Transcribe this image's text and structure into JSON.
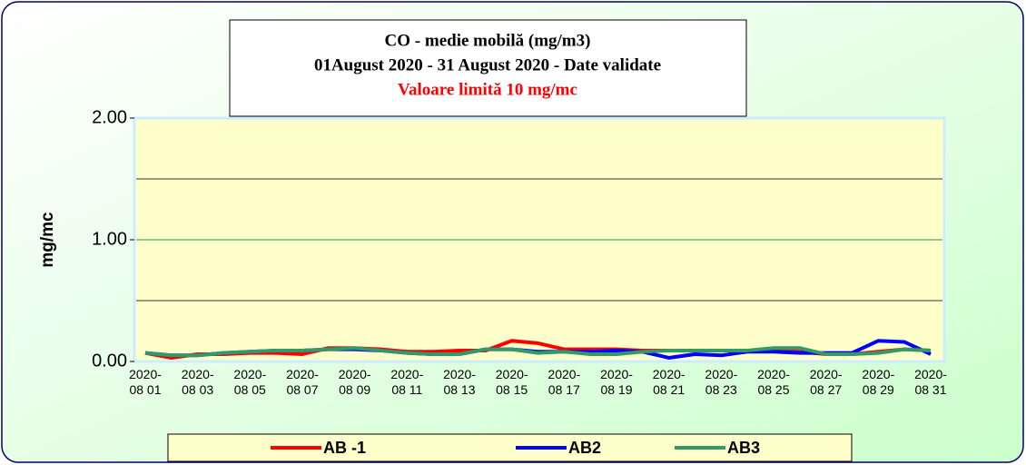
{
  "chart_data": {
    "type": "line",
    "title": [
      "CO - medie mobilă (mg/m3)",
      "01August 2020 -  31 August 2020 - Date validate",
      "Valoare limită 10 mg/mc"
    ],
    "title_colors": [
      "#000000",
      "#000000",
      "#ff0000"
    ],
    "ylabel": "mg/mc",
    "categories": [
      "2020-08 01",
      null,
      "2020-08 03",
      null,
      "2020-08 05",
      null,
      "2020-08 07",
      null,
      "2020-08 09",
      null,
      "2020-08 11",
      null,
      "2020-08 13",
      null,
      "2020-08 15",
      null,
      "2020-08 17",
      null,
      "2020-08 19",
      null,
      "2020-08 21",
      null,
      "2020-08 23",
      null,
      "2020-08 25",
      null,
      "2020-08 27",
      null,
      "2020-08 29",
      null,
      "2020-08 31"
    ],
    "series": [
      {
        "name": "AB -1",
        "color": "#ff0000",
        "values": [
          0.07,
          0.03,
          0.06,
          0.06,
          0.07,
          0.07,
          0.06,
          0.11,
          0.11,
          0.1,
          0.08,
          0.08,
          0.09,
          0.09,
          0.17,
          0.15,
          0.1,
          0.1,
          0.1,
          0.09,
          0.09,
          0.09,
          0.09,
          0.09,
          0.09,
          0.08,
          0.06,
          0.06,
          0.08,
          0.1,
          0.09
        ]
      },
      {
        "name": "AB2",
        "color": "#0000ff",
        "values": [
          0.07,
          0.05,
          0.05,
          0.07,
          0.08,
          0.09,
          0.09,
          0.1,
          0.1,
          0.09,
          0.07,
          0.06,
          0.06,
          0.1,
          0.1,
          0.08,
          0.08,
          0.08,
          0.09,
          0.08,
          0.03,
          0.06,
          0.05,
          0.08,
          0.08,
          0.07,
          0.07,
          0.07,
          0.17,
          0.16,
          0.06
        ]
      },
      {
        "name": "AB3",
        "color": "#339966",
        "values": [
          0.07,
          0.05,
          0.05,
          0.07,
          0.08,
          0.09,
          0.09,
          0.1,
          0.11,
          0.09,
          0.07,
          0.06,
          0.06,
          0.1,
          0.1,
          0.07,
          0.08,
          0.06,
          0.06,
          0.08,
          0.09,
          0.09,
          0.09,
          0.09,
          0.11,
          0.11,
          0.06,
          0.06,
          0.07,
          0.1,
          0.09
        ]
      }
    ],
    "ylim": [
      0,
      2
    ],
    "yticks": [
      {
        "value": 0,
        "label": "0.00"
      },
      {
        "value": 1,
        "label": "1.00"
      },
      {
        "value": 2,
        "label": "2.00"
      }
    ],
    "grid_lines": [
      0.5,
      1,
      1.5
    ],
    "legend": "bottom"
  }
}
